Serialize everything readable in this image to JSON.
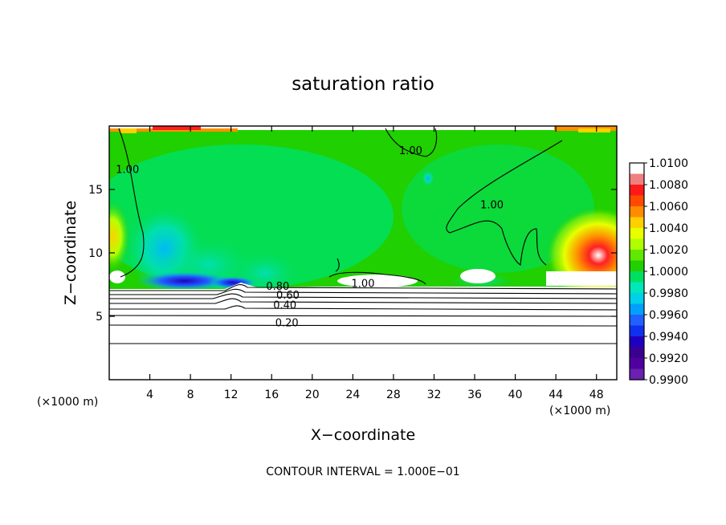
{
  "chart_data": {
    "type": "heatmap",
    "title": "saturation ratio",
    "xlabel": "X−coordinate",
    "ylabel": "Z−coordinate",
    "x_unit_left": "(×1000 m)",
    "x_unit_right": "(×1000 m)",
    "footer": "CONTOUR INTERVAL = 1.000E−01",
    "xlim": [
      0,
      50
    ],
    "ylim": [
      0,
      20
    ],
    "x_ticks": [
      4,
      8,
      12,
      16,
      20,
      24,
      28,
      32,
      36,
      40,
      44,
      48
    ],
    "y_ticks": [
      5,
      10,
      15
    ],
    "colorbar": {
      "levels": [
        "1.0100",
        "1.0080",
        "1.0060",
        "1.0040",
        "1.0020",
        "1.0000",
        "0.9980",
        "0.9960",
        "0.9940",
        "0.9920",
        "0.9900"
      ],
      "colors": [
        "#ffffff",
        "#f08080",
        "#ff1a1a",
        "#ff4a00",
        "#ff8c00",
        "#ffd000",
        "#e8ff00",
        "#b0ff00",
        "#60e800",
        "#22d000",
        "#00e060",
        "#00e8b8",
        "#00d0e8",
        "#00a0ff",
        "#2060ff",
        "#1030f0",
        "#2000c0",
        "#3a0090",
        "#5000a0",
        "#6a20b0"
      ]
    },
    "contour_labels": [
      {
        "text": "1.00",
        "x": 1.8,
        "z": 16.3
      },
      {
        "text": "1.00",
        "x": 29.7,
        "z": 17.8
      },
      {
        "text": "1.00",
        "x": 37.7,
        "z": 13.5
      },
      {
        "text": "1.00",
        "x": 25.0,
        "z": 7.3
      },
      {
        "text": "0.80",
        "x": 16.6,
        "z": 7.1
      },
      {
        "text": "0.60",
        "x": 17.6,
        "z": 6.4
      },
      {
        "text": "0.40",
        "x": 17.3,
        "z": 5.6
      },
      {
        "text": "0.20",
        "x": 17.5,
        "z": 4.2
      }
    ]
  }
}
